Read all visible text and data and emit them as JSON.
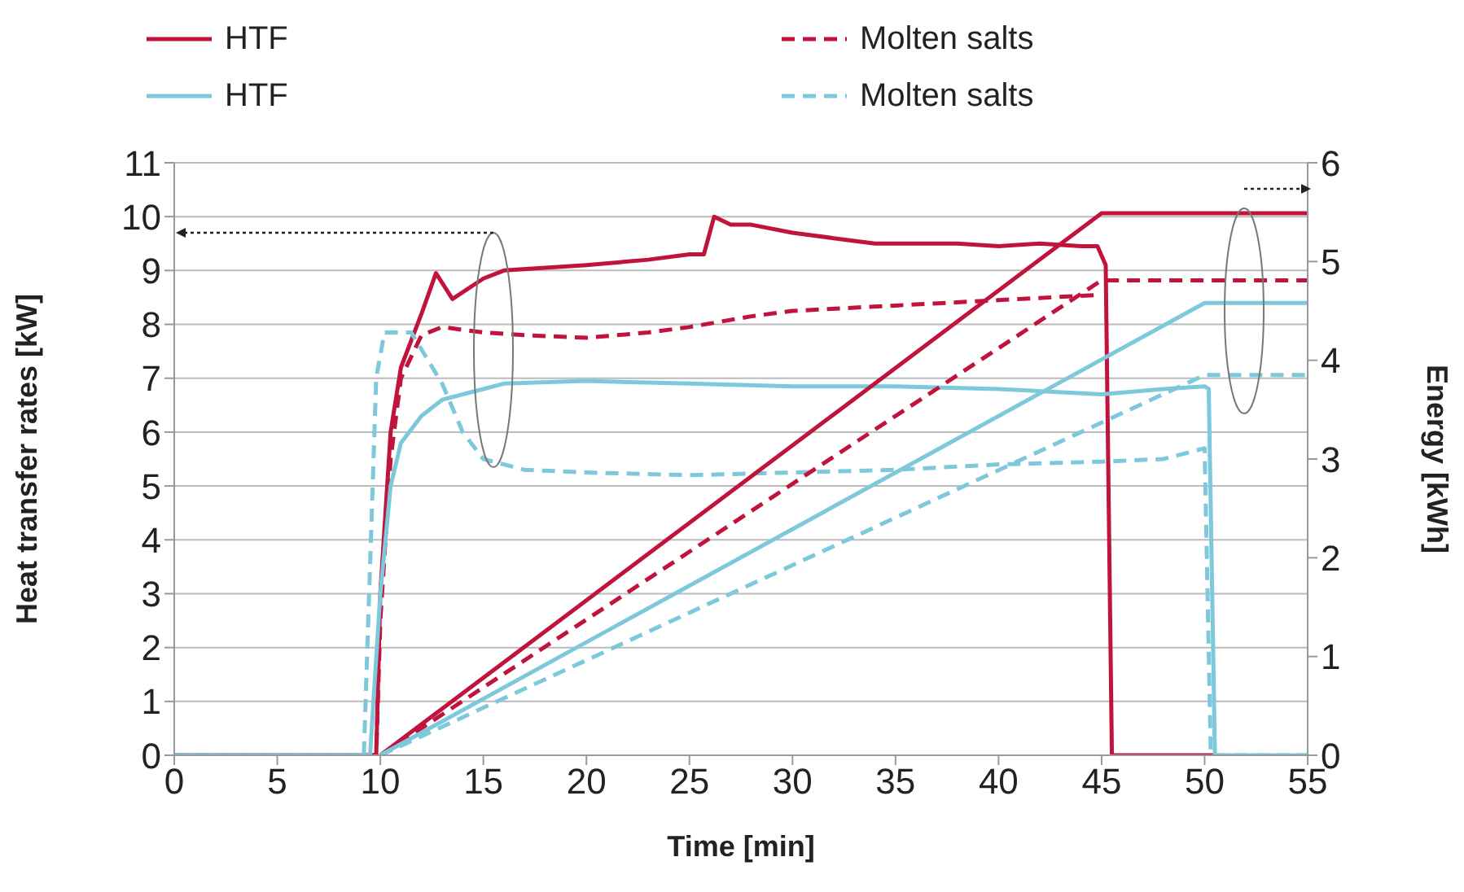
{
  "chart_data": {
    "type": "line",
    "xlabel": "Time [min]",
    "ylabel": "Heat transfer rates [kW]",
    "y2label": "Energy [kWh]",
    "xlim": [
      0,
      55
    ],
    "xticks": [
      0,
      5,
      10,
      15,
      20,
      25,
      30,
      35,
      40,
      45,
      50,
      55
    ],
    "ylim": [
      0,
      11
    ],
    "yticks": [
      0,
      1,
      2,
      3,
      4,
      5,
      6,
      7,
      8,
      9,
      10,
      11
    ],
    "y2lim": [
      0,
      6
    ],
    "y2ticks": [
      0,
      1,
      2,
      3,
      4,
      5,
      6
    ],
    "grid": "y",
    "legend": "top",
    "marker": "none",
    "series": [
      {
        "name": "HTF",
        "color": "#c0143c",
        "line_style": "solid",
        "x": [
          0,
          9.8,
          10,
          10.5,
          11,
          12,
          12.7,
          13.5,
          15,
          16,
          18,
          20,
          23,
          25,
          25.7,
          26.2,
          27,
          28,
          30,
          32,
          34,
          36,
          38,
          40,
          42,
          44,
          44.8,
          45.2,
          45.5,
          50.5
        ],
        "values": [
          0,
          0,
          3,
          6,
          7.2,
          8.2,
          8.95,
          8.47,
          8.85,
          9.0,
          9.05,
          9.1,
          9.2,
          9.3,
          9.3,
          10.0,
          9.85,
          9.85,
          9.7,
          9.6,
          9.5,
          9.5,
          9.5,
          9.45,
          9.5,
          9.45,
          9.45,
          9.1,
          0,
          0
        ]
      },
      {
        "name": "Molten salts",
        "color": "#c0143c",
        "line_style": "dashed",
        "x": [
          0,
          9.8,
          10,
          10.5,
          11,
          12,
          13,
          15,
          17,
          20,
          23,
          25,
          28,
          30,
          35,
          40,
          45
        ],
        "values": [
          0,
          0,
          2.5,
          5.5,
          7.0,
          7.8,
          7.95,
          7.85,
          7.8,
          7.75,
          7.85,
          7.95,
          8.15,
          8.25,
          8.35,
          8.45,
          8.55
        ]
      },
      {
        "name": "HTF",
        "color": "#7ec8dc",
        "line_style": "solid",
        "x": [
          0,
          9.5,
          10,
          10.5,
          11,
          12,
          13,
          15,
          16,
          20,
          25,
          30,
          35,
          40,
          45,
          48,
          50,
          50.2,
          50.5,
          55
        ],
        "values": [
          0,
          0,
          3,
          5,
          5.8,
          6.3,
          6.6,
          6.8,
          6.9,
          6.95,
          6.9,
          6.85,
          6.85,
          6.8,
          6.7,
          6.8,
          6.85,
          6.8,
          0,
          0
        ]
      },
      {
        "name": "Molten salts",
        "color": "#7ec8dc",
        "line_style": "dashed",
        "x": [
          0,
          9.2,
          9.8,
          10.2,
          11.5,
          13,
          14,
          15,
          17,
          20,
          25,
          30,
          35,
          40,
          45,
          48,
          50,
          50.3,
          55
        ],
        "values": [
          0,
          0,
          7,
          7.85,
          7.85,
          6.9,
          6.0,
          5.5,
          5.3,
          5.25,
          5.2,
          5.25,
          5.3,
          5.4,
          5.45,
          5.5,
          5.7,
          0,
          0
        ]
      },
      {
        "color": "#c0143c",
        "line_style": "solid",
        "axis": "y2",
        "x": [
          10,
          45,
          55
        ],
        "values": [
          0,
          5.49,
          5.49
        ]
      },
      {
        "color": "#c0143c",
        "line_style": "dashed",
        "axis": "y2",
        "x": [
          10,
          45,
          55
        ],
        "values": [
          0,
          4.81,
          4.81
        ]
      },
      {
        "color": "#7ec8dc",
        "line_style": "solid",
        "axis": "y2",
        "x": [
          10,
          50,
          55
        ],
        "values": [
          0,
          4.58,
          4.58
        ]
      },
      {
        "color": "#7ec8dc",
        "line_style": "dashed",
        "axis": "y2",
        "x": [
          10,
          50,
          55
        ],
        "values": [
          0,
          3.85,
          3.85
        ]
      }
    ]
  }
}
